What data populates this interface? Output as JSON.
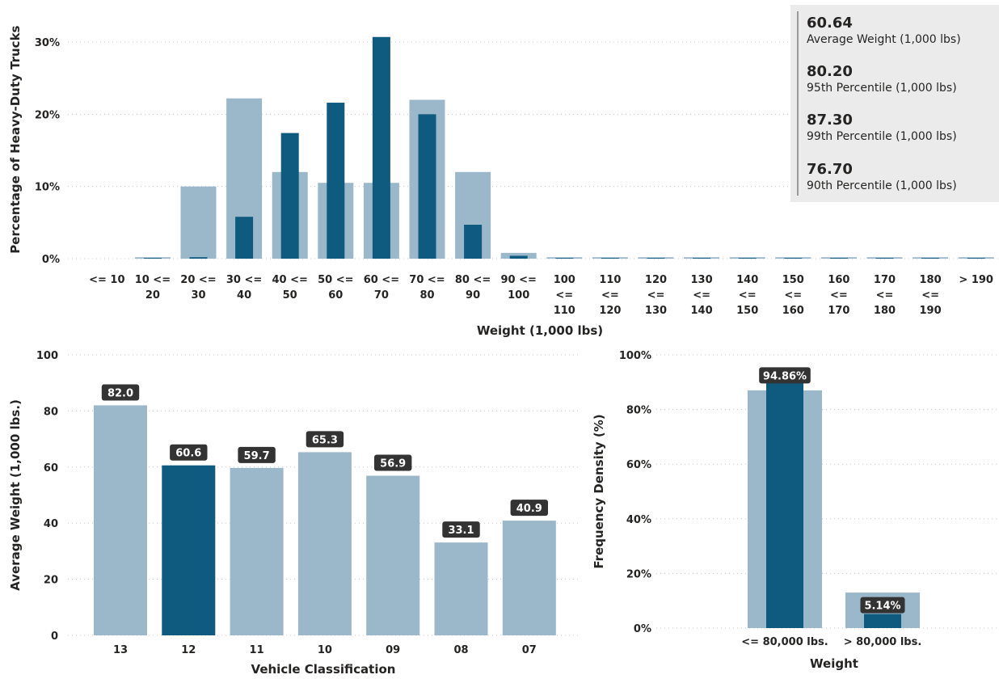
{
  "colors": {
    "light": "#9bb8ca",
    "dark": "#0f5a7f",
    "label_bg": "#333333"
  },
  "kpis": [
    {
      "value": "60.64",
      "label": "Average Weight (1,000 lbs)"
    },
    {
      "value": "80.20",
      "label": "95th Percentile (1,000 lbs)"
    },
    {
      "value": "87.30",
      "label": "99th Percentile (1,000 lbs)"
    },
    {
      "value": "76.70",
      "label": "90th Percentile (1,000 lbs)"
    }
  ],
  "chart_data": [
    {
      "type": "bar",
      "xlabel": "Weight (1,000 lbs)",
      "ylabel": "Percentage of Heavy-Duty Trucks",
      "ylim": [
        0,
        0.33
      ],
      "yticks": [
        0,
        0.1,
        0.2,
        0.3
      ],
      "ytick_labels": [
        "0%",
        "10%",
        "20%",
        "30%"
      ],
      "grid": true,
      "categories": [
        [
          "<= 10"
        ],
        [
          "10 <=",
          "20"
        ],
        [
          "20 <=",
          "30"
        ],
        [
          "30 <=",
          "40"
        ],
        [
          "40 <=",
          "50"
        ],
        [
          "50 <=",
          "60"
        ],
        [
          "60 <=",
          "70"
        ],
        [
          "70 <=",
          "80"
        ],
        [
          "80 <=",
          "90"
        ],
        [
          "90 <=",
          "100"
        ],
        [
          "100",
          "<=",
          "110"
        ],
        [
          "110",
          "<=",
          "120"
        ],
        [
          "120",
          "<=",
          "130"
        ],
        [
          "130",
          "<=",
          "140"
        ],
        [
          "140",
          "<=",
          "150"
        ],
        [
          "150",
          "<=",
          "160"
        ],
        [
          "160",
          "<=",
          "170"
        ],
        [
          "170",
          "<=",
          "180"
        ],
        [
          "180",
          "<=",
          "190"
        ],
        [
          "> 190"
        ]
      ],
      "series": [
        {
          "values": [
            0,
            0.002,
            0.1,
            0.222,
            0.12,
            0.105,
            0.105,
            0.22,
            0.12,
            0.008,
            0.002,
            0.002,
            0.002,
            0.002,
            0.002,
            0.002,
            0.002,
            0.002,
            0.002,
            0.002
          ]
        },
        {
          "values": [
            0,
            0.001,
            0.002,
            0.058,
            0.174,
            0.216,
            0.307,
            0.2,
            0.047,
            0.004,
            0.001,
            0.001,
            0.001,
            0.001,
            0.001,
            0.001,
            0.001,
            0.001,
            0.001,
            0.001
          ]
        }
      ]
    },
    {
      "type": "bar",
      "xlabel": "Vehicle Classification",
      "ylabel": "Average Weight (1,000 lbs.)",
      "ylim": [
        0,
        100
      ],
      "yticks": [
        0,
        20,
        40,
        60,
        80,
        100
      ],
      "ytick_labels": [
        "0",
        "20",
        "40",
        "60",
        "80",
        "100"
      ],
      "grid": true,
      "categories": [
        "13",
        "12",
        "11",
        "10",
        "09",
        "08",
        "07"
      ],
      "values": [
        82.0,
        60.6,
        59.7,
        65.3,
        56.9,
        33.1,
        40.9
      ],
      "data_labels": [
        "82.0",
        "60.6",
        "59.7",
        "65.3",
        "56.9",
        "33.1",
        "40.9"
      ],
      "highlight_index": 1
    },
    {
      "type": "bar",
      "xlabel": "Weight",
      "ylabel": "Frequency Density (%)",
      "ylim": [
        0,
        1.0
      ],
      "yticks": [
        0,
        0.2,
        0.4,
        0.6,
        0.8,
        1.0
      ],
      "ytick_labels": [
        "0%",
        "20%",
        "40%",
        "60%",
        "80%",
        "100%"
      ],
      "grid": true,
      "categories": [
        "<= 80,000 lbs.",
        "> 80,000 lbs."
      ],
      "series": [
        {
          "values": [
            0.87,
            0.13
          ]
        },
        {
          "values": [
            0.9486,
            0.0514
          ]
        }
      ],
      "data_labels": [
        "94.86%",
        "5.14%"
      ]
    }
  ]
}
